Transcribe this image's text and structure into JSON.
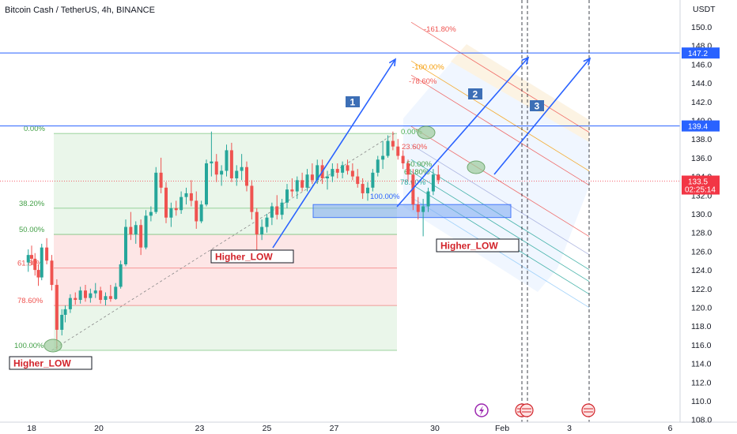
{
  "title": "Bitcoin Cash / TetherUS, 4h, BINANCE",
  "currency": "USDT",
  "colors": {
    "up": "#26a69a",
    "down": "#ef5350",
    "hline": "#2962ff",
    "arrow": "#2962ff",
    "annot_text": "#d2232a",
    "tag_bg": "#131722",
    "price_tag": "#f23645",
    "level_tag": "#2962ff"
  },
  "price_tag": {
    "value": "133.5",
    "countdown": "02:25:14"
  },
  "level_tags": [
    {
      "label": "147.2",
      "price": 147.2
    },
    {
      "label": "139.4",
      "price": 139.4
    }
  ],
  "annotations": [
    {
      "text": "Higher_LOW",
      "day": 18.5,
      "price": 114.2
    },
    {
      "text": "Higher_LOW",
      "day": 24.7,
      "price": 125.5
    },
    {
      "text": "Higher_LOW",
      "day": 31.0,
      "price": 126.9
    }
  ],
  "number_labels": [
    {
      "text": "1",
      "day": 26.5,
      "price": 141.8
    },
    {
      "text": "2",
      "day": 30.6,
      "price": 142.6
    },
    {
      "text": "3",
      "day": 31.6,
      "price": 140.6
    }
  ],
  "fib_left_labels": [
    "0.00%",
    "38.20%",
    "50.00%",
    "61.80%",
    "78.60%",
    "100.00%"
  ],
  "fib_right_labels": [
    "0.00%",
    "23.60%",
    "50.00%",
    "61.80%",
    "78.60%",
    "100.00%"
  ],
  "fib_ext_labels": [
    "-161.80%",
    "-100.00%",
    "-78.60%"
  ],
  "chart_data": {
    "type": "candlestick",
    "title": "Bitcoin Cash / TetherUS, 4h, BINANCE",
    "ylabel": "USDT",
    "y_axis_ticks": [
      108.0,
      110.0,
      112.0,
      114.0,
      116.0,
      118.0,
      120.0,
      122.0,
      124.0,
      126.0,
      128.0,
      130.0,
      132.0,
      134.0,
      136.0,
      138.0,
      140.0,
      142.0,
      144.0,
      146.0,
      148.0,
      150.0
    ],
    "x_axis_ticks": [
      {
        "label": "18",
        "day": 18
      },
      {
        "label": "20",
        "day": 20
      },
      {
        "label": "23",
        "day": 23
      },
      {
        "label": "25",
        "day": 25
      },
      {
        "label": "27",
        "day": 27
      },
      {
        "label": "30",
        "day": 30
      },
      {
        "label": "Feb",
        "day": 32
      },
      {
        "label": "3",
        "day": 34
      },
      {
        "label": "6",
        "day": 37
      }
    ],
    "ylim": [
      107.5,
      152.5
    ],
    "candles": [
      [
        17.9,
        124.8,
        126.2,
        123.8,
        125.6
      ],
      [
        18.0,
        125.6,
        126.6,
        124.5,
        125.2
      ],
      [
        18.1,
        125.2,
        125.8,
        123.4,
        124.0
      ],
      [
        18.2,
        124.0,
        124.6,
        122.3,
        123.2
      ],
      [
        18.3,
        123.2,
        126.8,
        122.9,
        126.4
      ],
      [
        18.45,
        126.4,
        127.4,
        124.6,
        125.0
      ],
      [
        18.6,
        125.0,
        125.6,
        121.8,
        122.4
      ],
      [
        18.75,
        122.4,
        123.0,
        115.5,
        117.6
      ],
      [
        18.9,
        117.6,
        119.8,
        117.0,
        119.2
      ],
      [
        19.0,
        119.2,
        120.2,
        118.4,
        119.8
      ],
      [
        19.15,
        119.8,
        121.4,
        119.4,
        121.0
      ],
      [
        19.3,
        121.0,
        121.6,
        120.3,
        120.8
      ],
      [
        19.45,
        120.8,
        122.2,
        120.4,
        121.8
      ],
      [
        19.6,
        121.8,
        122.4,
        120.6,
        121.0
      ],
      [
        19.75,
        121.0,
        122.0,
        120.5,
        121.5
      ],
      [
        19.9,
        121.5,
        122.6,
        121.0,
        121.8
      ],
      [
        20.05,
        121.8,
        122.2,
        120.4,
        120.8
      ],
      [
        20.2,
        120.8,
        121.6,
        120.2,
        121.2
      ],
      [
        20.35,
        121.2,
        122.4,
        120.6,
        120.9
      ],
      [
        20.5,
        120.9,
        122.6,
        120.8,
        122.2
      ],
      [
        20.65,
        122.2,
        125.0,
        122.0,
        124.6
      ],
      [
        20.8,
        124.6,
        129.4,
        124.4,
        128.6
      ],
      [
        20.95,
        128.6,
        130.2,
        127.2,
        127.8
      ],
      [
        21.1,
        127.8,
        129.2,
        126.8,
        128.8
      ],
      [
        21.25,
        128.8,
        129.4,
        125.6,
        126.4
      ],
      [
        21.4,
        126.4,
        130.4,
        126.2,
        129.8
      ],
      [
        21.55,
        129.8,
        130.8,
        129.2,
        130.2
      ],
      [
        21.7,
        130.2,
        135.0,
        130.0,
        134.4
      ],
      [
        21.85,
        134.4,
        136.0,
        132.2,
        132.8
      ],
      [
        22.0,
        132.8,
        133.4,
        129.0,
        129.6
      ],
      [
        22.15,
        129.6,
        131.2,
        128.6,
        130.6
      ],
      [
        22.3,
        130.6,
        131.4,
        129.8,
        130.4
      ],
      [
        22.45,
        130.4,
        132.4,
        130.0,
        131.8
      ],
      [
        22.6,
        131.8,
        132.8,
        131.0,
        132.2
      ],
      [
        22.75,
        132.2,
        133.6,
        130.8,
        131.4
      ],
      [
        22.9,
        131.4,
        132.4,
        128.4,
        129.2
      ],
      [
        23.05,
        129.2,
        131.4,
        129.0,
        131.0
      ],
      [
        23.2,
        131.0,
        135.8,
        130.8,
        135.4
      ],
      [
        23.35,
        135.4,
        138.8,
        134.0,
        135.6
      ],
      [
        23.5,
        135.6,
        136.4,
        133.4,
        134.2
      ],
      [
        23.65,
        134.2,
        135.2,
        133.0,
        134.6
      ],
      [
        23.8,
        134.6,
        137.4,
        134.0,
        136.8
      ],
      [
        23.95,
        136.8,
        137.6,
        133.4,
        133.8
      ],
      [
        24.1,
        133.8,
        135.2,
        133.0,
        134.6
      ],
      [
        24.25,
        134.6,
        136.4,
        133.6,
        135.0
      ],
      [
        24.4,
        135.0,
        135.6,
        132.4,
        133.0
      ],
      [
        24.55,
        133.0,
        133.6,
        129.4,
        130.2
      ],
      [
        24.7,
        130.2,
        130.6,
        125.6,
        127.8
      ],
      [
        24.85,
        127.8,
        129.4,
        127.2,
        128.6
      ],
      [
        25.0,
        128.6,
        130.0,
        128.0,
        129.6
      ],
      [
        25.15,
        129.6,
        131.2,
        128.8,
        130.8
      ],
      [
        25.3,
        130.8,
        132.0,
        129.4,
        129.9
      ],
      [
        25.45,
        129.9,
        131.6,
        129.4,
        131.2
      ],
      [
        25.6,
        131.2,
        133.2,
        130.6,
        132.6
      ],
      [
        25.75,
        132.6,
        133.8,
        131.8,
        132.4
      ],
      [
        25.9,
        132.4,
        134.0,
        131.6,
        133.6
      ],
      [
        26.05,
        133.6,
        134.4,
        132.4,
        132.8
      ],
      [
        26.2,
        132.8,
        134.8,
        132.4,
        134.2
      ],
      [
        26.35,
        134.2,
        135.4,
        133.2,
        133.6
      ],
      [
        26.5,
        133.6,
        135.8,
        133.2,
        135.2
      ],
      [
        26.65,
        135.2,
        135.8,
        133.2,
        133.8
      ],
      [
        26.8,
        133.8,
        134.6,
        132.6,
        134.0
      ],
      [
        26.95,
        134.0,
        135.4,
        133.4,
        134.8
      ],
      [
        27.1,
        134.8,
        135.4,
        133.8,
        134.4
      ],
      [
        27.25,
        134.4,
        135.6,
        133.8,
        135.2
      ],
      [
        27.4,
        135.2,
        135.8,
        134.2,
        134.6
      ],
      [
        27.55,
        134.6,
        135.4,
        133.6,
        134.0
      ],
      [
        27.7,
        134.0,
        134.8,
        132.8,
        133.2
      ],
      [
        27.85,
        133.2,
        133.8,
        131.6,
        132.2
      ],
      [
        28.0,
        132.2,
        133.4,
        131.4,
        132.8
      ],
      [
        28.15,
        132.8,
        134.8,
        132.4,
        134.4
      ],
      [
        28.3,
        134.4,
        136.2,
        134.0,
        135.8
      ],
      [
        28.45,
        135.8,
        137.8,
        134.8,
        136.2
      ],
      [
        28.6,
        136.2,
        138.4,
        136.0,
        137.8
      ],
      [
        28.75,
        137.8,
        138.8,
        136.8,
        137.2
      ],
      [
        28.9,
        137.2,
        138.0,
        135.8,
        136.2
      ],
      [
        29.05,
        136.2,
        136.8,
        134.8,
        135.4
      ],
      [
        29.2,
        135.4,
        135.8,
        133.6,
        134.2
      ],
      [
        29.35,
        134.2,
        134.8,
        130.4,
        131.0
      ],
      [
        29.5,
        131.0,
        131.8,
        129.4,
        130.2
      ],
      [
        29.65,
        130.2,
        131.6,
        127.6,
        130.8
      ],
      [
        29.8,
        130.8,
        132.8,
        130.2,
        132.4
      ],
      [
        29.95,
        132.4,
        134.8,
        132.0,
        134.2
      ],
      [
        30.1,
        134.2,
        135.2,
        133.2,
        133.6
      ]
    ]
  }
}
